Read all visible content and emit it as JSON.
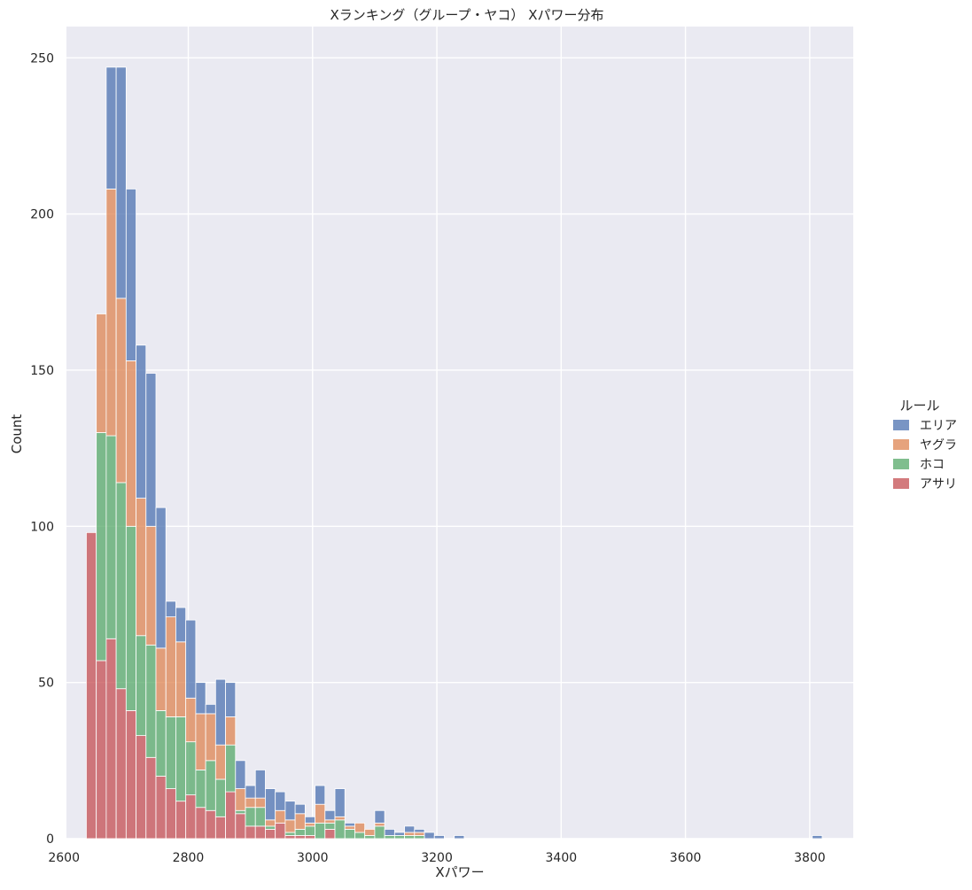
{
  "chart_data": {
    "type": "bar",
    "subtype": "stacked-histogram",
    "title": "Xランキング（グループ・ヤコ） Xパワー分布",
    "xlabel": "Xパワー",
    "ylabel": "Count",
    "xlim": [
      2604,
      3870
    ],
    "ylim": [
      0,
      260
    ],
    "xticks": [
      2600,
      2800,
      3000,
      3200,
      3400,
      3600,
      3800
    ],
    "yticks": [
      0,
      50,
      100,
      150,
      200,
      250
    ],
    "grid": true,
    "legend": {
      "title": "ルール",
      "placement": "right"
    },
    "stack_order_bottom_to_top": [
      "アサリ",
      "ホコ",
      "ヤグラ",
      "エリア"
    ],
    "x": [
      2644,
      2660,
      2676,
      2692,
      2708,
      2724,
      2740,
      2756,
      2772,
      2788,
      2804,
      2820,
      2836,
      2852,
      2868,
      2884,
      2900,
      2916,
      2932,
      2948,
      2964,
      2980,
      2996,
      3012,
      3028,
      3044,
      3060,
      3076,
      3092,
      3108,
      3124,
      3140,
      3156,
      3172,
      3188,
      3204,
      3220,
      3236,
      3252,
      3268,
      3812
    ],
    "bin_width": 16,
    "series": [
      {
        "name": "アサリ",
        "color": "#c44e52",
        "values": [
          98,
          57,
          64,
          48,
          41,
          33,
          26,
          20,
          16,
          12,
          14,
          10,
          9,
          7,
          15,
          8,
          4,
          4,
          3,
          5,
          1,
          1,
          1,
          0,
          3,
          0,
          0,
          0,
          0,
          0,
          0,
          0,
          0,
          0,
          0,
          0,
          0,
          0,
          0,
          0,
          0
        ]
      },
      {
        "name": "ホコ",
        "color": "#55a868",
        "values": [
          0,
          73,
          65,
          66,
          59,
          32,
          36,
          21,
          23,
          27,
          17,
          12,
          16,
          12,
          15,
          1,
          6,
          6,
          1,
          0,
          1,
          2,
          3,
          5,
          2,
          6,
          3,
          2,
          1,
          4,
          1,
          1,
          1,
          1,
          0,
          0,
          0,
          0,
          0,
          0,
          0
        ]
      },
      {
        "name": "ヤグラ",
        "color": "#dd8452",
        "values": [
          0,
          38,
          79,
          59,
          53,
          44,
          38,
          20,
          32,
          24,
          14,
          18,
          15,
          11,
          9,
          7,
          3,
          3,
          2,
          4,
          4,
          5,
          1,
          6,
          1,
          1,
          1,
          3,
          2,
          1,
          0,
          0,
          1,
          1,
          0,
          0,
          0,
          0,
          0,
          0,
          0
        ]
      },
      {
        "name": "エリア",
        "color": "#4c72b0",
        "values": [
          0,
          0,
          39,
          74,
          55,
          49,
          49,
          45,
          5,
          11,
          25,
          10,
          3,
          21,
          11,
          9,
          4,
          9,
          10,
          6,
          6,
          3,
          2,
          6,
          3,
          9,
          1,
          0,
          0,
          4,
          2,
          1,
          2,
          1,
          2,
          1,
          0,
          1,
          0,
          0,
          1
        ]
      }
    ]
  }
}
